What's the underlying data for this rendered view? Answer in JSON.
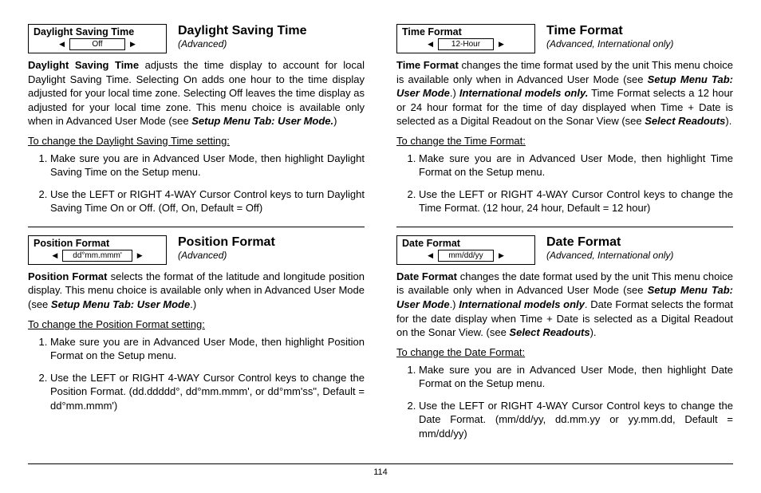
{
  "pageNumber": "114",
  "left": {
    "s1": {
      "menuLabel": "Daylight Saving Time",
      "menuValue": "Off",
      "title": "Daylight Saving Time",
      "subtitle": "(Advanced)",
      "lead": "Daylight Saving Time",
      "desc": " adjusts the time display to account for local Daylight Saving Time. Selecting On adds one hour to the time display adjusted for your local time zone. Selecting Off leaves the time display as adjusted for your local time zone. This menu choice is available only when in Advanced User Mode (see ",
      "ref": "Setup Menu Tab: User Mode.",
      "tail": ")",
      "procTitle": "To change the Daylight Saving Time setting:",
      "step1": "Make sure you are in Advanced User Mode, then highlight Daylight Saving Time on the Setup menu.",
      "step2": "Use the LEFT or RIGHT 4-WAY Cursor Control keys to turn Daylight Saving Time On or Off. (Off, On, Default = Off)"
    },
    "s2": {
      "menuLabel": "Position Format",
      "menuValue": "dd°mm.mmm'",
      "title": "Position Format",
      "subtitle": "(Advanced)",
      "lead": "Position Format",
      "desc": " selects the format of the latitude and longitude position display. This menu choice is available only when in Advanced User Mode (see ",
      "ref": "Setup Menu Tab: User Mode",
      "tail": ".)",
      "procTitle": "To change the Position Format setting:",
      "step1": "Make sure you are in Advanced User Mode, then highlight Position Format on the Setup menu.",
      "step2": "Use the LEFT or RIGHT 4-WAY Cursor Control keys to change the Position Format. (dd.ddddd°, dd°mm.mmm', or dd°mm'ss\", Default = dd°mm.mmm')"
    }
  },
  "right": {
    "s1": {
      "menuLabel": "Time Format",
      "menuValue": "12-Hour",
      "title": "Time Format",
      "subtitle": "(Advanced, International only)",
      "lead": "Time Format",
      "desc1": " changes the time format used by the unit This menu choice is available only when in Advanced User Mode (see ",
      "ref1": "Setup Menu Tab: User Mode",
      "mid1": ".) ",
      "intl": "International models only.",
      "desc2": " Time Format selects a 12 hour or 24 hour format for the time of day displayed when Time + Date is selected as a Digital Readout on the Sonar View (see ",
      "ref2": "Select Readouts",
      "tail": ").",
      "procTitle": "To change the Time Format:",
      "step1": "Make sure you are in Advanced User Mode, then highlight Time Format on the Setup menu.",
      "step2": "Use the LEFT or RIGHT 4-WAY Cursor Control keys to change the Time Format. (12 hour, 24 hour, Default = 12 hour)"
    },
    "s2": {
      "menuLabel": "Date Format",
      "menuValue": "mm/dd/yy",
      "title": "Date Format",
      "subtitle": "(Advanced, International only)",
      "lead": "Date Format",
      "desc1": " changes the date format used by the unit This menu choice is available only when in Advanced User Mode (see ",
      "ref1": "Setup Menu Tab: User Mode",
      "mid1": ".) ",
      "intl": "International models only",
      "desc2": ". Date Format selects the format for the date display when Time + Date is selected as a Digital Readout on the Sonar View. (see ",
      "ref2": "Select Readouts",
      "tail": ").",
      "procTitle": "To change the Date Format:",
      "step1": "Make sure you are in Advanced User Mode, then highlight Date Format on the Setup menu.",
      "step2": "Use the LEFT or RIGHT 4-WAY Cursor Control keys to change the Date Format. (mm/dd/yy, dd.mm.yy or yy.mm.dd, Default = mm/dd/yy)"
    }
  }
}
